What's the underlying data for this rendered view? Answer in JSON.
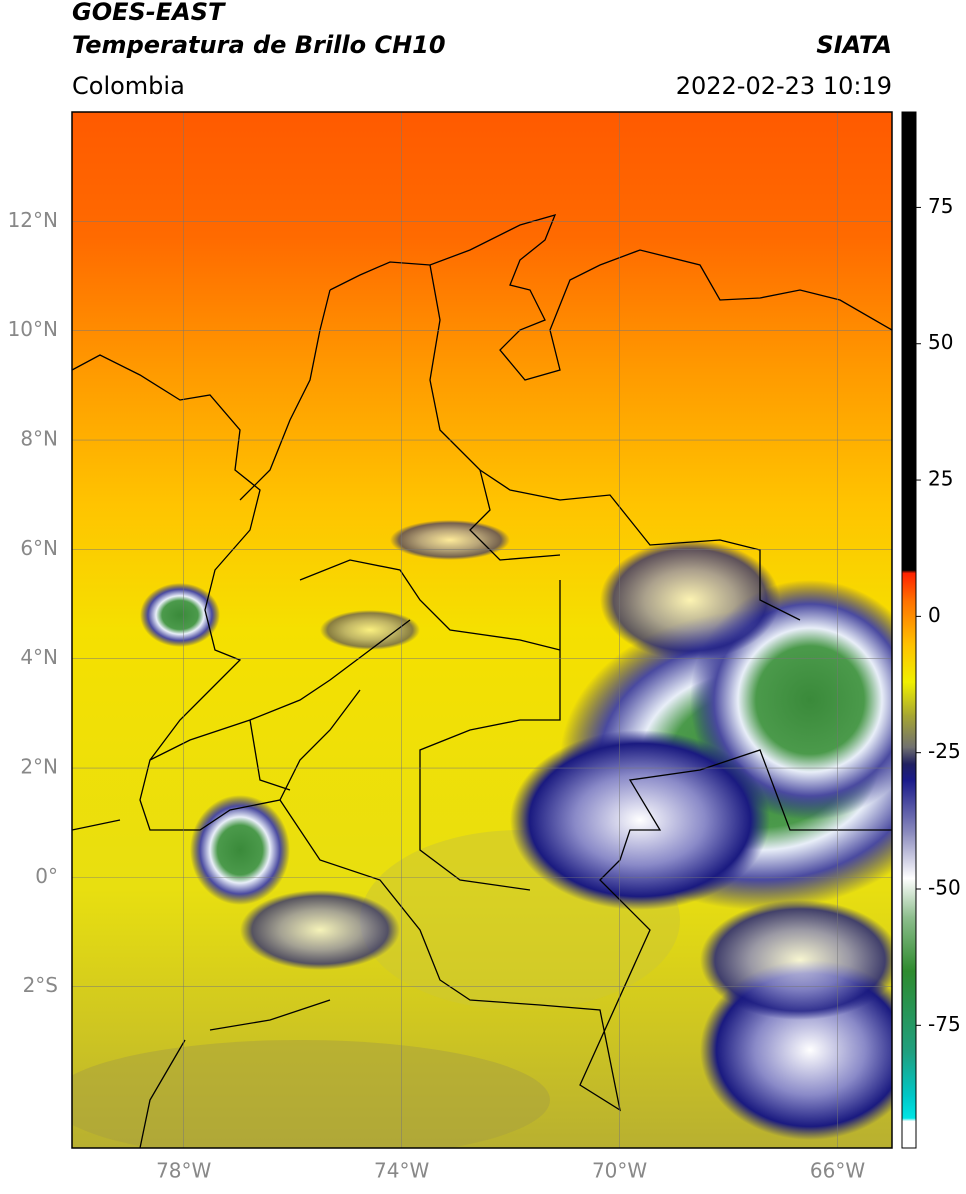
{
  "header": {
    "title": "GOES-EAST",
    "subtitle": "Temperatura de Brillo CH10",
    "source": "SIATA",
    "region": "Colombia",
    "datetime": "2022-02-23 10:19"
  },
  "map": {
    "lonlim": [
      -80.05,
      -65
    ],
    "latlim": [
      -4.95,
      14
    ],
    "lonticks": [
      {
        "value": -78,
        "label": "78°W"
      },
      {
        "value": -74,
        "label": "74°W"
      },
      {
        "value": -70,
        "label": "70°W"
      },
      {
        "value": -66,
        "label": "66°W"
      }
    ],
    "latticks": [
      {
        "value": 12,
        "label": "12°N"
      },
      {
        "value": 10,
        "label": "10°N"
      },
      {
        "value": 8,
        "label": "8°N"
      },
      {
        "value": 6,
        "label": "6°N"
      },
      {
        "value": 4,
        "label": "4°N"
      },
      {
        "value": 2,
        "label": "2°N"
      },
      {
        "value": 0,
        "label": "0°"
      },
      {
        "value": -2,
        "label": "2°S"
      }
    ],
    "grid": true
  },
  "colorbar": {
    "lim": [
      -97.5,
      92.5
    ],
    "ticks": [
      75,
      50,
      25,
      0,
      -25,
      -50,
      -75
    ],
    "stops": [
      {
        "value": -97.5,
        "color": "#ffffff"
      },
      {
        "value": -92.5,
        "color": "#ffffff"
      },
      {
        "value": -92,
        "color": "#00e5e5"
      },
      {
        "value": -88,
        "color": "#00c8c8"
      },
      {
        "value": -80,
        "color": "#20a080"
      },
      {
        "value": -65,
        "color": "#2e8b2e"
      },
      {
        "value": -55,
        "color": "#8fbf8f"
      },
      {
        "value": -48,
        "color": "#ffffff"
      },
      {
        "value": -40,
        "color": "#9090c0"
      },
      {
        "value": -30,
        "color": "#1a1a8a"
      },
      {
        "value": -27,
        "color": "#202060"
      },
      {
        "value": -24,
        "color": "#707070"
      },
      {
        "value": -18,
        "color": "#a8a830"
      },
      {
        "value": -12,
        "color": "#f0f000"
      },
      {
        "value": -5,
        "color": "#ffc000"
      },
      {
        "value": 3,
        "color": "#ff7000"
      },
      {
        "value": 8,
        "color": "#ff2000"
      },
      {
        "value": 8.5,
        "color": "#000000"
      },
      {
        "value": 92.5,
        "color": "#000000"
      }
    ]
  }
}
